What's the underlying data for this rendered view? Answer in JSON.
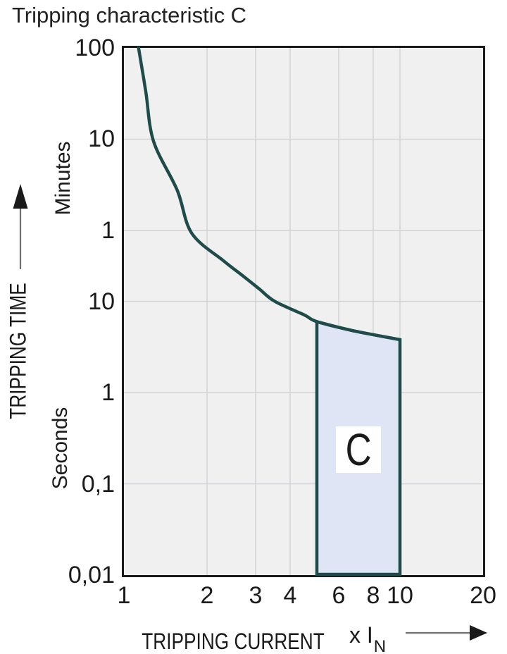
{
  "title": "Tripping characteristic C",
  "y_axis": {
    "label": "TRIPPING TIME",
    "units_top": "Minutes",
    "units_bottom": "Seconds"
  },
  "x_axis": {
    "label": "TRIPPING CURRENT",
    "multiplier_prefix": "x I",
    "multiplier_sub": "N"
  },
  "colors": {
    "curve": "#1f4c4a",
    "region_fill": "#dfe5f4",
    "plot_bg": "#f0f0f0",
    "grid": "#d4d4d8",
    "border": "#1a1a1a",
    "text": "#1a1a1a",
    "arrow_line": "#6f6f6f"
  },
  "chart_data": {
    "type": "line",
    "title": "Tripping characteristic C",
    "xlabel": "TRIPPING CURRENT (x IN)",
    "ylabel": "TRIPPING TIME",
    "x_scale": "log",
    "y_scale": "log",
    "xlim": [
      1,
      20
    ],
    "ylim_seconds": [
      0.01,
      6000
    ],
    "grid": "on",
    "x_ticks": [
      {
        "label": "1",
        "value": 1
      },
      {
        "label": "2",
        "value": 2
      },
      {
        "label": "3",
        "value": 3
      },
      {
        "label": "4",
        "value": 4
      },
      {
        "label": "6",
        "value": 6
      },
      {
        "label": "8",
        "value": 8
      },
      {
        "label": "10",
        "value": 10
      },
      {
        "label": "20",
        "value": 20
      }
    ],
    "y_ticks": [
      {
        "label": "100",
        "unit": "minutes",
        "seconds": 6000
      },
      {
        "label": "10",
        "unit": "minutes",
        "seconds": 600
      },
      {
        "label": "1",
        "unit": "minutes",
        "seconds": 60
      },
      {
        "label": "10",
        "unit": "seconds",
        "seconds": 10
      },
      {
        "label": "1",
        "unit": "seconds",
        "seconds": 1
      },
      {
        "label": "0,1",
        "unit": "seconds",
        "seconds": 0.1
      },
      {
        "label": "0,01",
        "unit": "seconds",
        "seconds": 0.01
      }
    ],
    "series": [
      {
        "name": "C tripping curve",
        "x_unit": "multiple of rated current IN",
        "y_unit": "seconds",
        "points": [
          [
            1.115,
            8000
          ],
          [
            1.13,
            6000
          ],
          [
            1.2,
            2000
          ],
          [
            1.28,
            570
          ],
          [
            1.56,
            165
          ],
          [
            1.76,
            56
          ],
          [
            2.29,
            28
          ],
          [
            2.67,
            19.5
          ],
          [
            3.09,
            13.7
          ],
          [
            3.52,
            10
          ],
          [
            4.5,
            7.1
          ],
          [
            5.0,
            6.0
          ],
          [
            6.7,
            4.8
          ],
          [
            10.0,
            3.8
          ]
        ]
      }
    ],
    "region": {
      "label": "C",
      "x_range": [
        5,
        10
      ],
      "time_bottom_seconds": 0.01,
      "top_boundary": "follows curve"
    }
  }
}
